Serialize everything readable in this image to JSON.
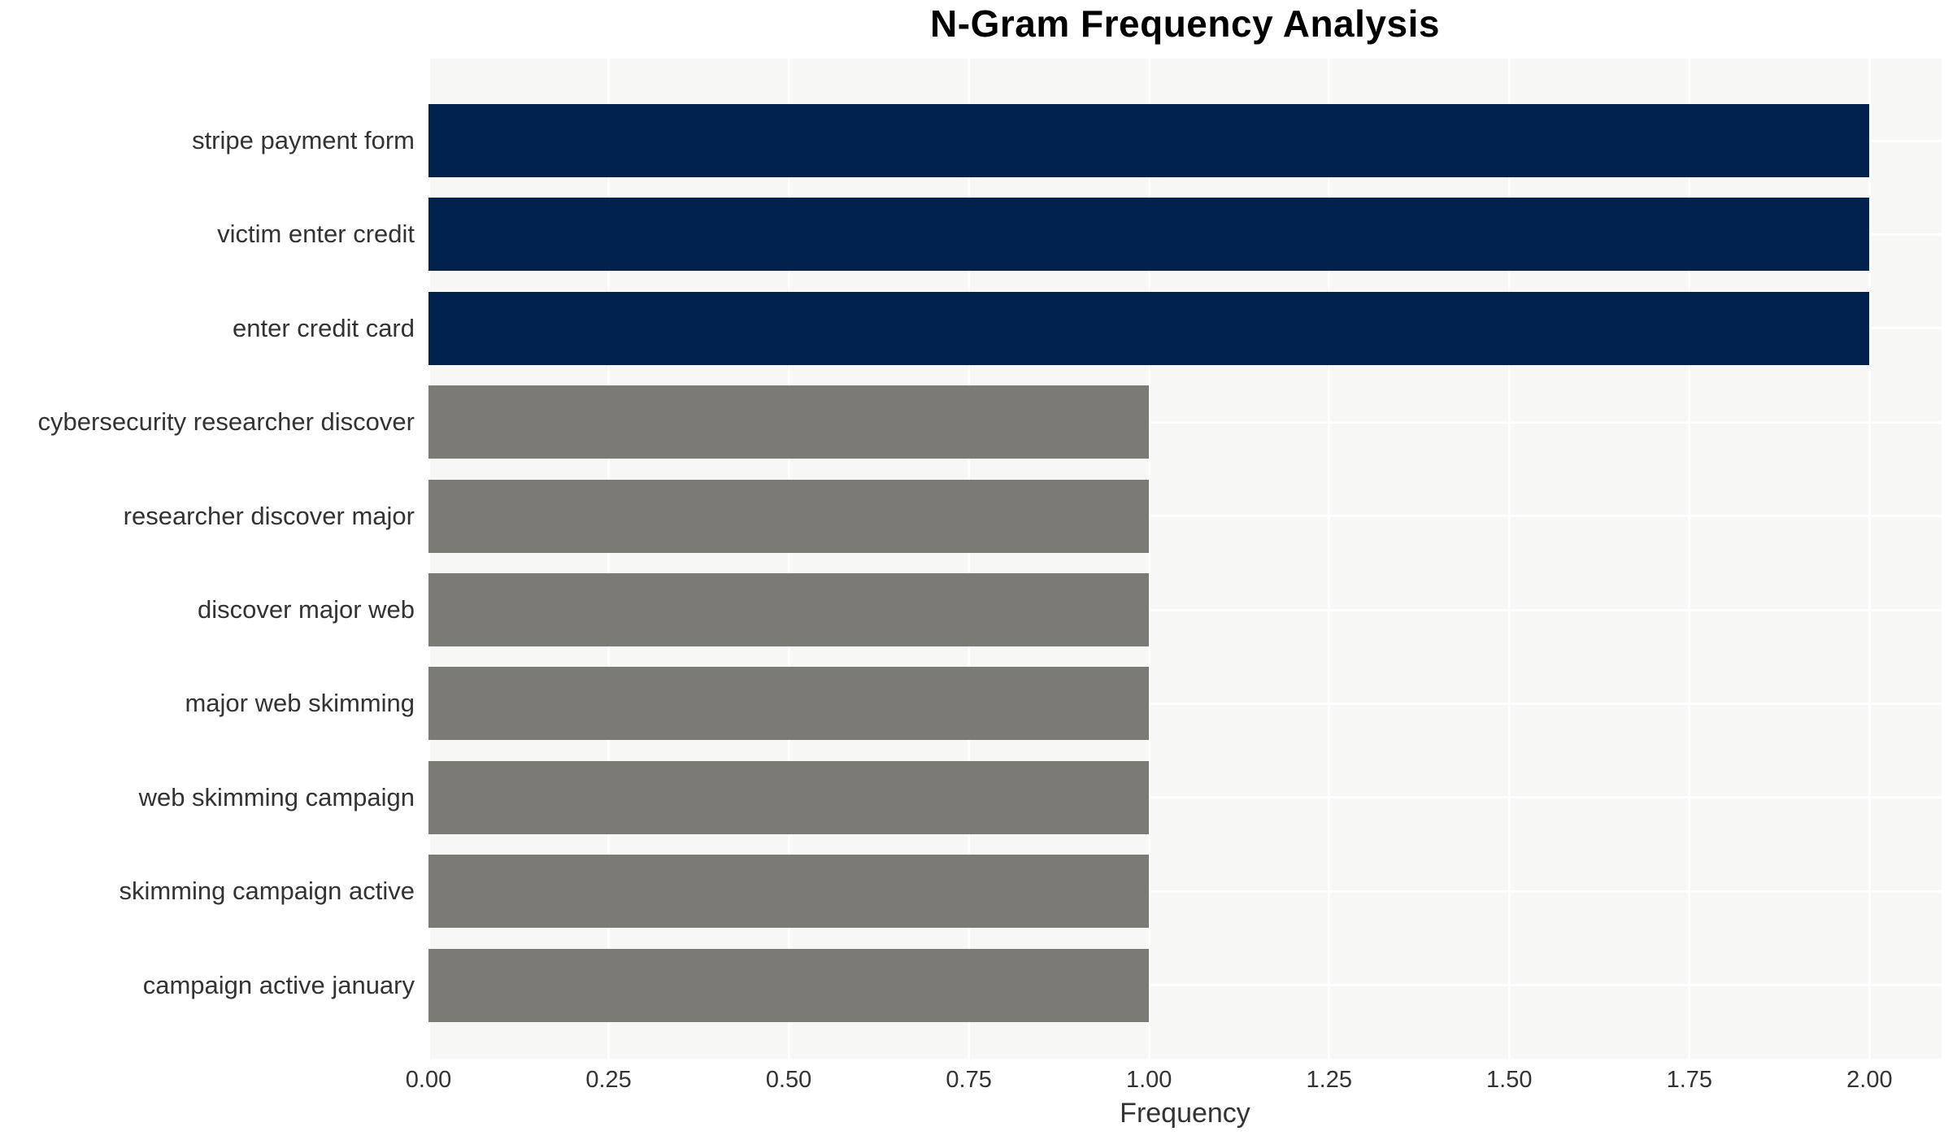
{
  "chart_data": {
    "type": "bar",
    "orientation": "horizontal",
    "title": "N-Gram Frequency Analysis",
    "xlabel": "Frequency",
    "ylabel": "",
    "categories": [
      "stripe payment form",
      "victim enter credit",
      "enter credit card",
      "cybersecurity researcher discover",
      "researcher discover major",
      "discover major web",
      "major web skimming",
      "web skimming campaign",
      "skimming campaign active",
      "campaign active january"
    ],
    "values": [
      2,
      2,
      2,
      1,
      1,
      1,
      1,
      1,
      1,
      1
    ],
    "bar_colors": [
      "#02224e",
      "#02224e",
      "#02224e",
      "#7b7a75",
      "#7b7a75",
      "#7b7a75",
      "#7b7a75",
      "#7b7a75",
      "#7b7a75",
      "#7b7a75"
    ],
    "xlim": [
      0,
      2.1
    ],
    "x_ticks": [
      0,
      0.25,
      0.5,
      0.75,
      1,
      1.25,
      1.5,
      1.75,
      2
    ],
    "x_tick_labels": [
      "0.00",
      "0.25",
      "0.50",
      "0.75",
      "1.00",
      "1.25",
      "1.50",
      "1.75",
      "2.00"
    ],
    "grid": true,
    "legend": "none",
    "colors": {
      "highlight_bar": "#02224e",
      "default_bar": "#7b7a75",
      "plot_background": "#f7f7f6",
      "gridline": "#ffffff",
      "tick_text": "#333333",
      "title_text": "#000000"
    }
  }
}
